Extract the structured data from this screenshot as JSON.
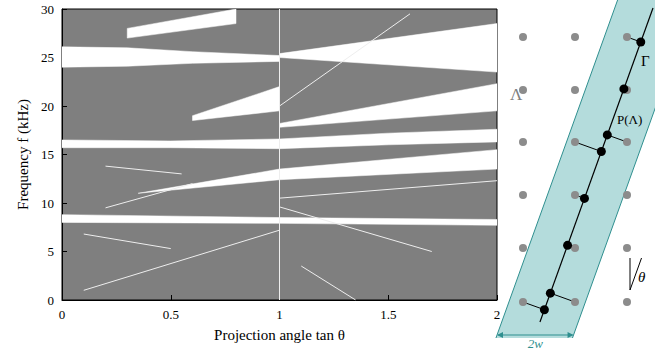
{
  "chart_data": {
    "type": "area",
    "xlabel": "Projection angle tan θ",
    "ylabel": "Frequency f (kHz)",
    "xlim": [
      0,
      2
    ],
    "xticks": [
      0,
      0.5,
      1,
      1.5,
      2
    ],
    "ylim": [
      0,
      30
    ],
    "yticks": [
      0,
      5,
      10,
      15,
      20,
      25,
      30
    ],
    "grid": false,
    "color": "#7f7f7f",
    "series": [
      {
        "type": "area",
        "color": "#ffffff",
        "values": [
          {
            "lower": [
              [
                0,
                8.0
              ],
              [
                1,
                7.9
              ],
              [
                2,
                7.7
              ]
            ],
            "upper": [
              [
                0,
                8.8
              ],
              [
                1,
                8.5
              ],
              [
                2,
                8.3
              ]
            ]
          },
          {
            "lower": [
              [
                0,
                15.7
              ],
              [
                0.5,
                15.7
              ],
              [
                1,
                15.6
              ],
              [
                1.5,
                16.0
              ],
              [
                2,
                16.3
              ]
            ],
            "upper": [
              [
                0,
                16.5
              ],
              [
                0.5,
                16.4
              ],
              [
                1,
                16.6
              ],
              [
                1.5,
                17.2
              ],
              [
                2,
                17.6
              ]
            ]
          },
          {
            "lower": [
              [
                0.35,
                11.0
              ],
              [
                1,
                12.4
              ],
              [
                2,
                13.5
              ]
            ],
            "upper": [
              [
                0.35,
                11.0
              ],
              [
                1,
                13.5
              ],
              [
                2,
                15.5
              ]
            ]
          },
          {
            "lower": [
              [
                0,
                24.0
              ],
              [
                0.3,
                24.1
              ],
              [
                0.6,
                24.4
              ],
              [
                1,
                24.6
              ]
            ],
            "upper": [
              [
                0,
                26.1
              ],
              [
                0.3,
                26.0
              ],
              [
                0.6,
                25.6
              ],
              [
                1,
                25.2
              ]
            ]
          },
          {
            "lower": [
              [
                1,
                25.0
              ],
              [
                2,
                23.5
              ]
            ],
            "upper": [
              [
                1,
                25.4
              ],
              [
                2,
                28.5
              ]
            ]
          },
          {
            "lower": [
              [
                1,
                17.8
              ],
              [
                2,
                19.5
              ]
            ],
            "upper": [
              [
                1,
                18.2
              ],
              [
                2,
                22.3
              ]
            ]
          },
          {
            "lower": [
              [
                0.6,
                18.5
              ],
              [
                1,
                19.5
              ]
            ],
            "upper": [
              [
                0.6,
                19.0
              ],
              [
                1,
                22.0
              ]
            ]
          },
          {
            "lower": [
              [
                0.3,
                27.0
              ],
              [
                0.8,
                28.5
              ]
            ],
            "upper": [
              [
                0.3,
                28.0
              ],
              [
                0.8,
                30.0
              ]
            ]
          }
        ]
      },
      {
        "type": "line",
        "color": "#eeeeee",
        "values": [
          [
            [
              0.1,
              1.0
            ],
            [
              1,
              7.2
            ]
          ],
          [
            [
              0.1,
              6.8
            ],
            [
              0.5,
              5.3
            ]
          ],
          [
            [
              1,
              9.6
            ],
            [
              1.7,
              5.0
            ]
          ],
          [
            [
              1,
              10.5
            ],
            [
              2,
              12.3
            ]
          ],
          [
            [
              0.2,
              9.5
            ],
            [
              0.6,
              12.0
            ]
          ],
          [
            [
              0.2,
              13.8
            ],
            [
              0.55,
              13.0
            ]
          ],
          [
            [
              1.1,
              3.5
            ],
            [
              1.35,
              0
            ]
          ],
          [
            [
              1,
              20.0
            ],
            [
              1.6,
              29.5
            ]
          ],
          [
            [
              1,
              0
            ],
            [
              1,
              30
            ]
          ]
        ]
      }
    ]
  },
  "diagram": {
    "lattice_label": "Λ",
    "line_label": "Γ",
    "projection_label": "P(Λ)",
    "angle_label": "θ",
    "width_label": "2w"
  }
}
